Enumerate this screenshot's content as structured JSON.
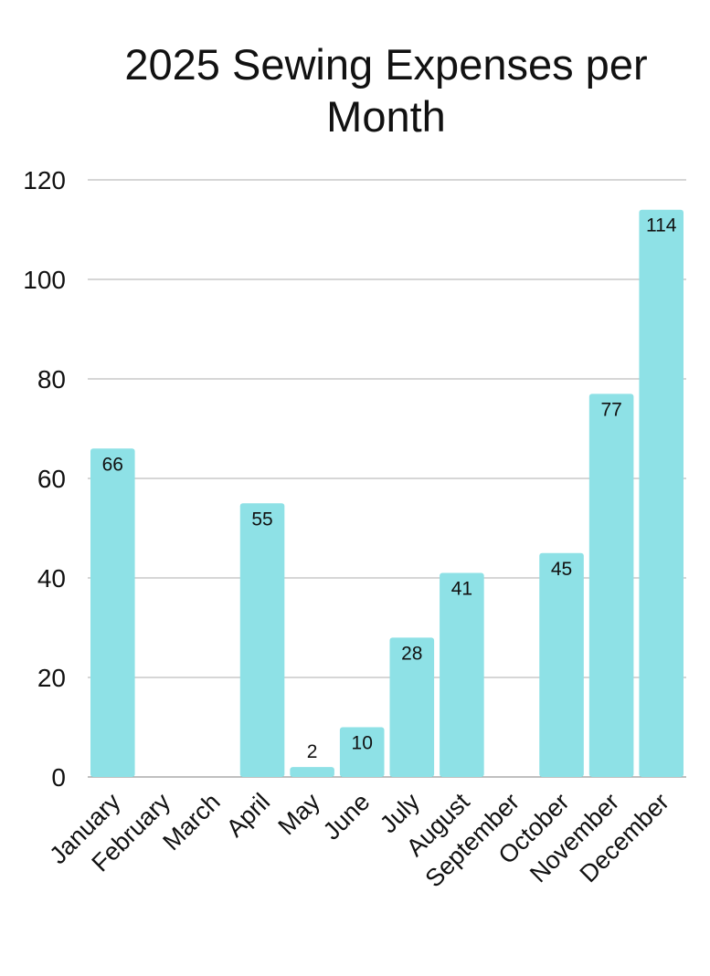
{
  "chart_data": {
    "type": "bar",
    "title": "2025 Sewing Expenses per Month",
    "xlabel": "",
    "ylabel": "",
    "categories": [
      "January",
      "February",
      "March",
      "April",
      "May",
      "June",
      "July",
      "August",
      "September",
      "October",
      "November",
      "December"
    ],
    "values": [
      66,
      0,
      0,
      55,
      2,
      10,
      28,
      41,
      0,
      45,
      77,
      114
    ],
    "data_labels": [
      "66",
      "",
      "",
      "55",
      "2",
      "10",
      "28",
      "41",
      "",
      "45",
      "77",
      "114"
    ],
    "ylim": [
      0,
      120
    ],
    "yticks": [
      "0",
      "20",
      "40",
      "60",
      "80",
      "100",
      "120"
    ],
    "grid": true,
    "legend": "none",
    "colors": {
      "bar": "#8ee1e6",
      "grid": "#c8c8c8",
      "text": "#111111"
    }
  }
}
